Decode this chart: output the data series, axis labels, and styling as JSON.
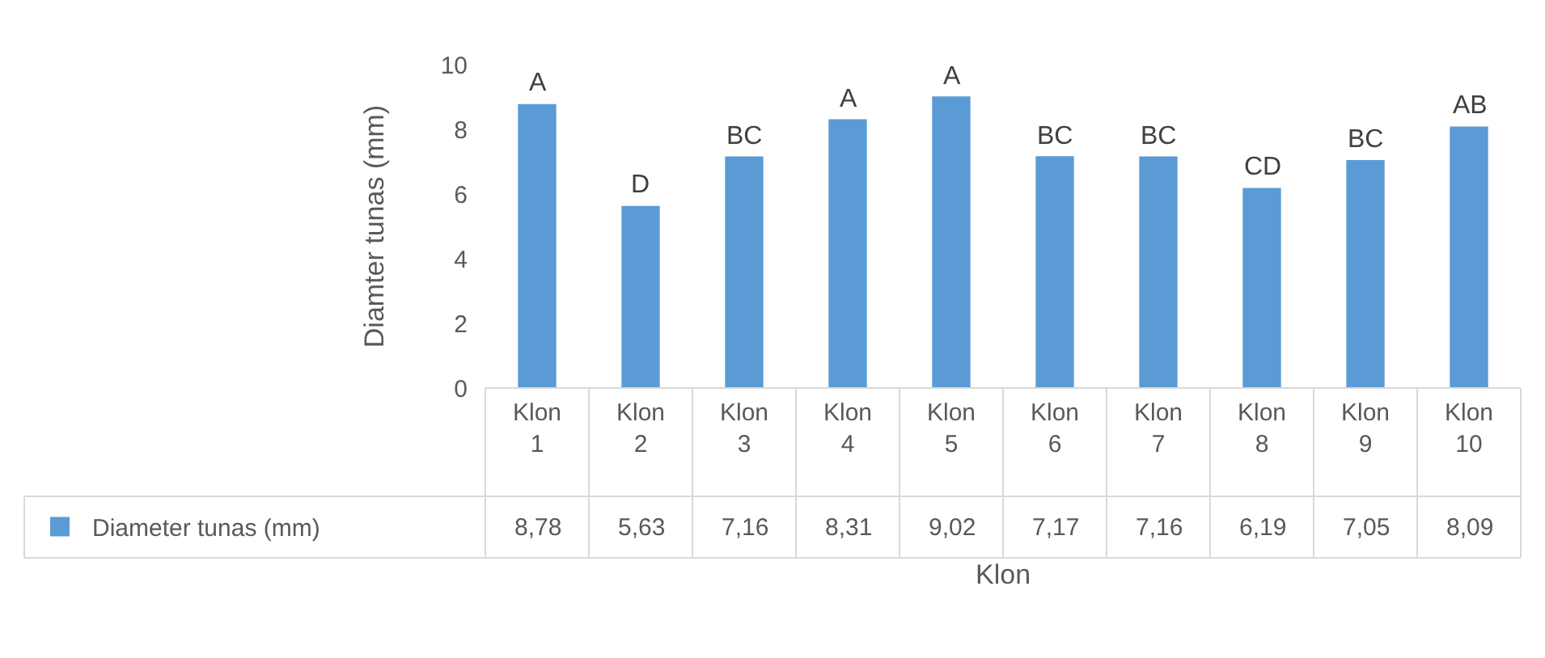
{
  "chart_data": {
    "type": "bar",
    "xlabel": "Klon",
    "ylabel": "Diamter tunas (mm)",
    "categories": [
      "Klon 1",
      "Klon 2",
      "Klon 3",
      "Klon 4",
      "Klon 5",
      "Klon 6",
      "Klon 7",
      "Klon 8",
      "Klon 9",
      "Klon 10"
    ],
    "series": [
      {
        "name": "Diameter tunas (mm)",
        "color": "#5b9bd5",
        "values": [
          8.78,
          5.63,
          7.16,
          8.31,
          9.02,
          7.17,
          7.16,
          6.19,
          7.05,
          8.09
        ],
        "value_labels": [
          "8,78",
          "5,63",
          "7,16",
          "8,31",
          "9,02",
          "7,17",
          "7,16",
          "6,19",
          "7,05",
          "8,09"
        ]
      }
    ],
    "ylim": [
      0,
      10
    ],
    "yticks": [
      0,
      2,
      4,
      6,
      8,
      10
    ],
    "grid": false,
    "legend": "bottom left",
    "annotations": [
      {
        "text": "A",
        "x": "Klon 1",
        "y": 8.78
      },
      {
        "text": "D",
        "x": "Klon 2",
        "y": 5.63
      },
      {
        "text": "BC",
        "x": "Klon 3",
        "y": 7.16
      },
      {
        "text": "A",
        "x": "Klon 4",
        "y": 8.31
      },
      {
        "text": "A",
        "x": "Klon 5",
        "y": 9.02
      },
      {
        "text": "BC",
        "x": "Klon 6",
        "y": 7.17
      },
      {
        "text": "BC",
        "x": "Klon 7",
        "y": 7.16
      },
      {
        "text": "CD",
        "x": "Klon 8",
        "y": 6.19
      },
      {
        "text": "BC",
        "x": "Klon 9",
        "y": 7.05
      },
      {
        "text": "AB",
        "x": "Klon 10",
        "y": 8.09
      }
    ]
  }
}
